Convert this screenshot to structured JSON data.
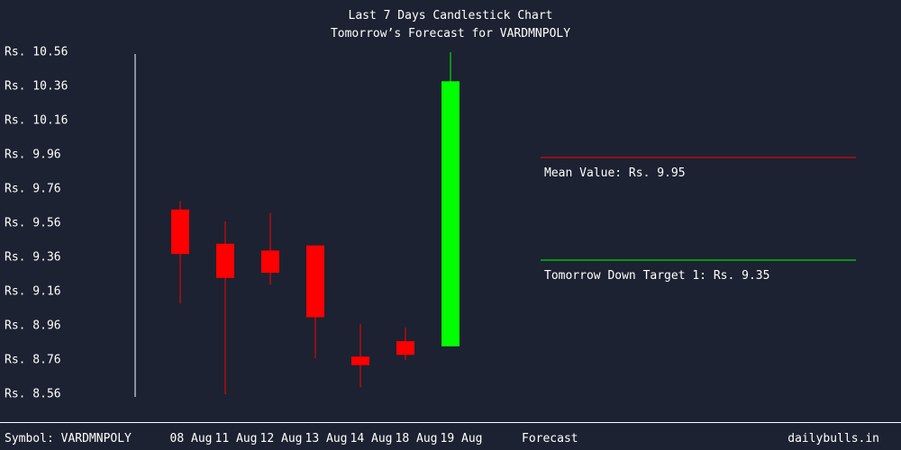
{
  "chart_data": {
    "type": "candlestick",
    "title": "Last 7 Days Candlestick Chart",
    "subtitle": "Tomorrow’s Forecast for VARDMNPOLY",
    "y_tick_labels": [
      "Rs. 10.56",
      "Rs. 10.36",
      "Rs. 10.16",
      "Rs. 9.96",
      "Rs. 9.76",
      "Rs. 9.56",
      "Rs. 9.36",
      "Rs. 9.16",
      "Rs. 8.96",
      "Rs. 8.76",
      "Rs. 8.56"
    ],
    "y_ticks": [
      10.56,
      10.36,
      10.16,
      9.96,
      9.76,
      9.56,
      9.36,
      9.16,
      8.96,
      8.76,
      8.56
    ],
    "ylim": [
      8.56,
      10.56
    ],
    "categories": [
      "08 Aug",
      "11 Aug",
      "12 Aug",
      "13 Aug",
      "14 Aug",
      "18 Aug",
      "19 Aug"
    ],
    "candles": [
      {
        "date": "08 Aug",
        "open": 9.64,
        "high": 9.69,
        "low": 9.09,
        "close": 9.38,
        "color": "#ff0000"
      },
      {
        "date": "11 Aug",
        "open": 9.44,
        "high": 9.57,
        "low": 8.56,
        "close": 9.24,
        "color": "#ff0000"
      },
      {
        "date": "12 Aug",
        "open": 9.4,
        "high": 9.62,
        "low": 9.2,
        "close": 9.27,
        "color": "#ff0000"
      },
      {
        "date": "13 Aug",
        "open": 9.43,
        "high": 9.43,
        "low": 8.77,
        "close": 9.01,
        "color": "#ff0000"
      },
      {
        "date": "14 Aug",
        "open": 8.78,
        "high": 8.97,
        "low": 8.6,
        "close": 8.73,
        "color": "#ff0000"
      },
      {
        "date": "18 Aug",
        "open": 8.87,
        "high": 8.95,
        "low": 8.76,
        "close": 8.79,
        "color": "#ff0000"
      },
      {
        "date": "19 Aug",
        "open": 8.84,
        "high": 10.56,
        "low": 8.84,
        "close": 10.39,
        "color": "#00ff00"
      }
    ],
    "forecast_label": "Forecast",
    "forecast_lines": [
      {
        "label": "Mean Value: Rs. 9.95",
        "color": "#ff0000"
      },
      {
        "label": "Tomorrow Down Target 1: Rs. 9.35",
        "color": "#00ff00"
      }
    ]
  },
  "footer": {
    "symbol": "Symbol: VARDMNPOLY",
    "brand": "dailybulls.in"
  },
  "colors": {
    "background": "#1c2231",
    "text": "#ffffff",
    "axis": "#ffffff",
    "down": "#ff0000",
    "up": "#00ff00"
  }
}
